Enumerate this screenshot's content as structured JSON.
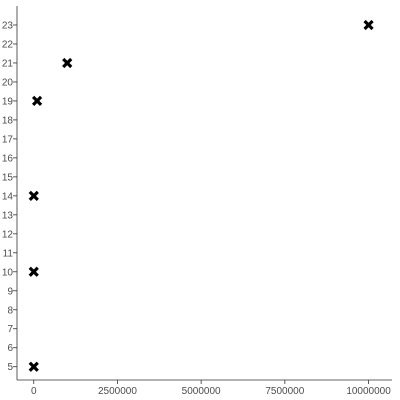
{
  "chart_data": {
    "type": "scatter",
    "title": "",
    "xlabel": "",
    "ylabel": "",
    "marker": "x",
    "marker_color": "#000000",
    "xlim": [
      -500000,
      10700000
    ],
    "ylim": [
      4.3,
      24
    ],
    "x_ticks": [
      0,
      2500000,
      5000000,
      7500000,
      10000000
    ],
    "x_tick_labels": [
      "0",
      "2500000",
      "5000000",
      "7500000",
      "10000000"
    ],
    "y_ticks": [
      5,
      6,
      7,
      8,
      9,
      10,
      11,
      12,
      13,
      14,
      15,
      16,
      17,
      18,
      19,
      20,
      21,
      22,
      23
    ],
    "y_tick_labels": [
      "5",
      "6",
      "7",
      "8",
      "9",
      "10",
      "11",
      "12",
      "13",
      "14",
      "15",
      "16",
      "17",
      "18",
      "19",
      "20",
      "21",
      "22",
      "23"
    ],
    "grid": false,
    "points": [
      {
        "x": 10,
        "y": 5
      },
      {
        "x": 100,
        "y": 10
      },
      {
        "x": 1000,
        "y": 14
      },
      {
        "x": 100000,
        "y": 19
      },
      {
        "x": 1000000,
        "y": 21
      },
      {
        "x": 10000000,
        "y": 23
      }
    ]
  }
}
